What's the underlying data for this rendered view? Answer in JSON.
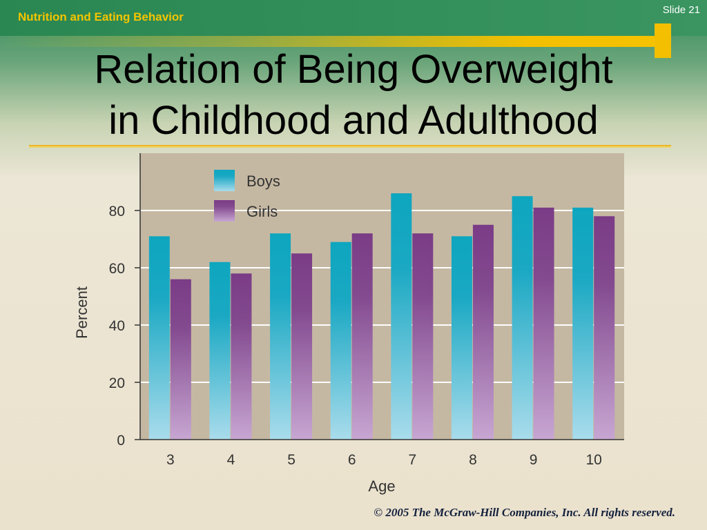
{
  "header": {
    "section": "Nutrition and Eating Behavior",
    "slide_label": "Slide 21"
  },
  "title": {
    "line1": "Relation of Being Overweight",
    "line2": "in Childhood and Adulthood"
  },
  "footer": {
    "copyright": "© 2005 The McGraw-Hill Companies, Inc. All rights reserved."
  },
  "colors": {
    "boys": "#12a5bf",
    "girls": "#7b3f87",
    "plot_bg": "#c5b8a2",
    "accent_gold": "#f3bf00",
    "header_green": "#2e8a58"
  },
  "chart_data": {
    "type": "bar",
    "xlabel": "Age",
    "ylabel": "Percent",
    "categories": [
      "3",
      "4",
      "5",
      "6",
      "7",
      "8",
      "9",
      "10"
    ],
    "series": [
      {
        "name": "Boys",
        "values": [
          71,
          62,
          72,
          69,
          86,
          71,
          85,
          81
        ]
      },
      {
        "name": "Girls",
        "values": [
          56,
          58,
          65,
          72,
          72,
          75,
          81,
          78
        ]
      }
    ],
    "yticks": [
      0,
      20,
      40,
      60,
      80
    ],
    "ylim": [
      0,
      100
    ],
    "grid": true,
    "legend_position": "top-left"
  }
}
